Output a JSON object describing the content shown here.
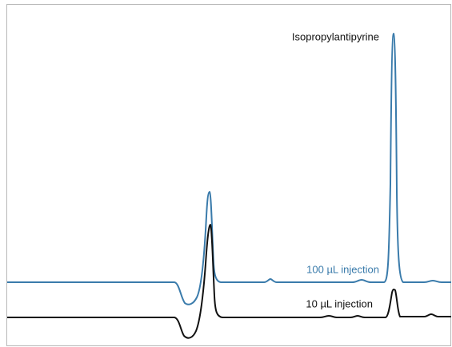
{
  "chart_data": {
    "type": "chromatogram",
    "annotation": "Isopropylantipyrine",
    "series": [
      {
        "name": "100 µL injection",
        "color": "#3a7bab"
      },
      {
        "name": "10 µL injection",
        "color": "#111111"
      }
    ]
  }
}
